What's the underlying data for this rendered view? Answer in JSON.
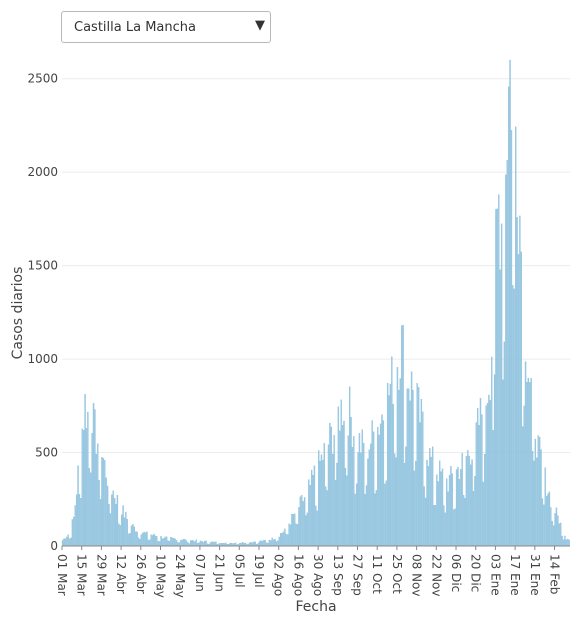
{
  "region_selector": {
    "selected": "Castilla La Mancha",
    "arrow": "▼"
  },
  "chart_data": {
    "type": "bar",
    "xlabel": "Fecha",
    "ylabel": "Casos diarios",
    "ylim": [
      0,
      2600
    ],
    "yticks": [
      0,
      500,
      1000,
      1500,
      2000,
      2500
    ],
    "grid": true,
    "bar_color": "#9ecae1",
    "bar_edge_color": "#6baed6",
    "x_start": "2020-03-01",
    "x_tick_labels": [
      "01 Mar",
      "15 Mar",
      "29 Mar",
      "12 Abr",
      "26 Abr",
      "10 May",
      "24 May",
      "07 Jun",
      "21 Jun",
      "05 Jul",
      "19 Jul",
      "02 Ago",
      "16 Ago",
      "30 Ago",
      "13 Sep",
      "27 Sep",
      "11 Oct",
      "25 Oct",
      "08 Nov",
      "22 Nov",
      "06 Dic",
      "20 Dic",
      "03 Ene",
      "17 Ene",
      "31 Ene",
      "14 Feb"
    ],
    "daily_cases_keypoints": [
      [
        0,
        30
      ],
      [
        5,
        70
      ],
      [
        8,
        150
      ],
      [
        10,
        300
      ],
      [
        13,
        560
      ],
      [
        16,
        760
      ],
      [
        18,
        700
      ],
      [
        20,
        820
      ],
      [
        22,
        650
      ],
      [
        24,
        580
      ],
      [
        27,
        520
      ],
      [
        30,
        430
      ],
      [
        33,
        340
      ],
      [
        36,
        290
      ],
      [
        40,
        230
      ],
      [
        44,
        170
      ],
      [
        48,
        120
      ],
      [
        52,
        90
      ],
      [
        56,
        75
      ],
      [
        60,
        65
      ],
      [
        66,
        55
      ],
      [
        72,
        45
      ],
      [
        80,
        38
      ],
      [
        88,
        32
      ],
      [
        96,
        28
      ],
      [
        104,
        22
      ],
      [
        112,
        18
      ],
      [
        120,
        16
      ],
      [
        128,
        18
      ],
      [
        136,
        22
      ],
      [
        144,
        28
      ],
      [
        150,
        40
      ],
      [
        156,
        70
      ],
      [
        160,
        110
      ],
      [
        164,
        160
      ],
      [
        168,
        210
      ],
      [
        172,
        260
      ],
      [
        176,
        320
      ],
      [
        180,
        400
      ],
      [
        184,
        460
      ],
      [
        188,
        540
      ],
      [
        192,
        600
      ],
      [
        196,
        700
      ],
      [
        200,
        760
      ],
      [
        204,
        720
      ],
      [
        208,
        580
      ],
      [
        212,
        540
      ],
      [
        216,
        520
      ],
      [
        220,
        580
      ],
      [
        224,
        640
      ],
      [
        228,
        720
      ],
      [
        232,
        820
      ],
      [
        235,
        900
      ],
      [
        238,
        1000
      ],
      [
        241,
        1080
      ],
      [
        244,
        950
      ],
      [
        247,
        870
      ],
      [
        250,
        820
      ],
      [
        253,
        720
      ],
      [
        256,
        640
      ],
      [
        259,
        520
      ],
      [
        262,
        460
      ],
      [
        266,
        410
      ],
      [
        270,
        370
      ],
      [
        274,
        340
      ],
      [
        278,
        380
      ],
      [
        282,
        420
      ],
      [
        286,
        460
      ],
      [
        290,
        520
      ],
      [
        294,
        600
      ],
      [
        298,
        720
      ],
      [
        301,
        800
      ],
      [
        304,
        950
      ],
      [
        306,
        1200
      ],
      [
        308,
        1600
      ],
      [
        310,
        1850
      ],
      [
        312,
        1750
      ],
      [
        314,
        2000
      ],
      [
        316,
        2300
      ],
      [
        318,
        2570
      ],
      [
        320,
        2450
      ],
      [
        322,
        2250
      ],
      [
        324,
        1950
      ],
      [
        326,
        1600
      ],
      [
        328,
        1300
      ],
      [
        330,
        1050
      ],
      [
        332,
        900
      ],
      [
        334,
        780
      ],
      [
        336,
        660
      ],
      [
        338,
        520
      ],
      [
        341,
        420
      ],
      [
        344,
        330
      ],
      [
        347,
        250
      ],
      [
        350,
        190
      ],
      [
        353,
        140
      ],
      [
        355,
        90
      ],
      [
        357,
        60
      ],
      [
        358,
        40
      ]
    ]
  }
}
